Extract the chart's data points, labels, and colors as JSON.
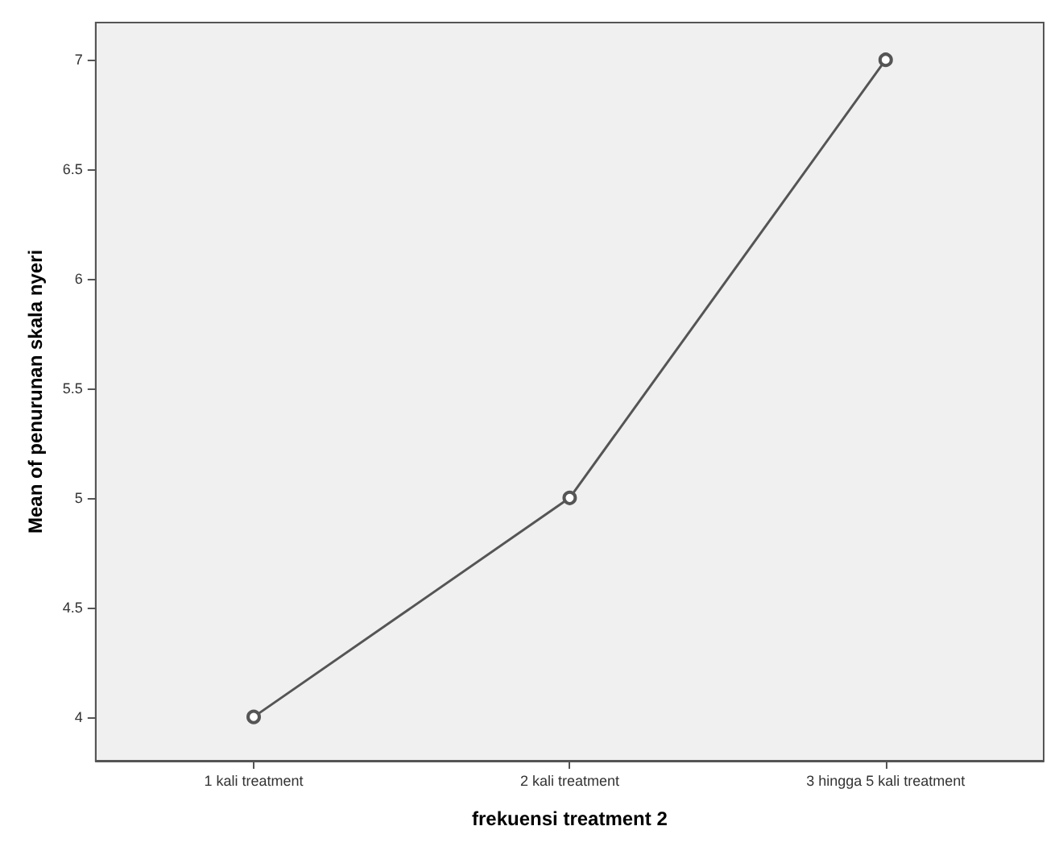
{
  "chart_data": {
    "type": "line",
    "xlabel": "frekuensi treatment 2",
    "ylabel": "Mean of penurunan skala nyeri",
    "categories": [
      "1 kali treatment",
      "2 kali treatment",
      "3 hingga 5 kali treatment"
    ],
    "series": [
      {
        "color": "#555555",
        "values": [
          4,
          5,
          7
        ]
      }
    ],
    "ylim": [
      3.8,
      7.17
    ],
    "yticks": [
      4,
      4.5,
      5,
      5.5,
      6,
      6.5,
      7
    ],
    "grid": false,
    "marker": "circle",
    "line_style": "solid"
  }
}
